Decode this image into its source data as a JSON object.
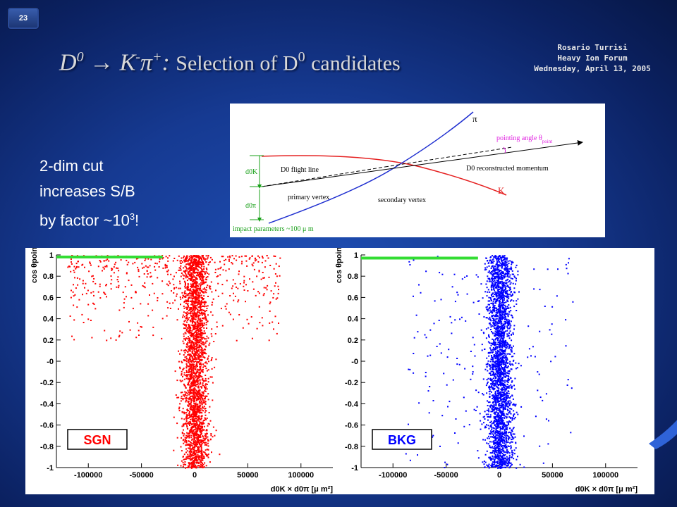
{
  "slide_number": "23",
  "header": {
    "author": "Rosario Turrisi",
    "event": "Heavy Ion Forum",
    "date": "Wednesday, April 13, 2005"
  },
  "title": {
    "d": "D",
    "d_sup": "0",
    "arrow": "→",
    "k": "K",
    "k_sup": "-",
    "pi": "π",
    "pi_sup": "+",
    "colon": ":",
    "rest": "Selection of D",
    "rest_sup": "0",
    "rest_end": "candidates"
  },
  "bullet": {
    "line1": "2-dim cut",
    "line2": "increases S/B",
    "line3_pre": "by factor ~10",
    "line3_sup": "3",
    "line3_post": "!"
  },
  "diagram": {
    "pi_label": "π",
    "k_label": "K",
    "pointing_angle": "pointing angle θ",
    "pointing_sub": "point",
    "flight_line": "D0 flight line",
    "reco_momentum": "D0 reconstructed momentum",
    "primary_vertex": "primary vertex",
    "secondary_vertex": "secondary vertex",
    "d0k": "d0K",
    "d0pi": "d0π",
    "impact": "impact parameters ~100 μ m",
    "colors": {
      "kaon": "#e52020",
      "pion": "#1f2fd0",
      "pointing": "#e020e0",
      "impact": "#19a019"
    }
  },
  "chart_data": [
    {
      "type": "scatter",
      "legend": "SGN",
      "color": "#ff0000",
      "ylabel": "cos θpoint",
      "xlabel": "d0K × d0π [μ m²]",
      "xlim": [
        -130000,
        130000
      ],
      "ylim": [
        -1,
        1
      ],
      "xticks": [
        "-100000",
        "-50000",
        "0",
        "50000",
        "100000"
      ],
      "yticks": [
        "1",
        "0.8",
        "0.6",
        "0.4",
        "0.2",
        "-0",
        "-0.2",
        "-0.4",
        "-0.6",
        "-0.8",
        "-1"
      ],
      "cut_line": {
        "x": [
          -130000,
          -30000
        ],
        "y": 0.98
      },
      "distribution": {
        "core_x_halfwidth": 10000,
        "wing_x_min": -120000,
        "wing_x_max": 80000
      }
    },
    {
      "type": "scatter",
      "legend": "BKG",
      "color": "#0000ff",
      "ylabel": "cos θpoint",
      "xlabel": "d0K × d0π [μ m²]",
      "xlim": [
        -130000,
        130000
      ],
      "ylim": [
        -1,
        1
      ],
      "xticks": [
        "-100000",
        "-50000",
        "0",
        "50000",
        "100000"
      ],
      "yticks": [
        "1",
        "0.8",
        "0.6",
        "0.4",
        "0.2",
        "-0",
        "-0.2",
        "-0.4",
        "-0.6",
        "-0.8",
        "-1"
      ],
      "cut_line": {
        "x": [
          -130000,
          -20000
        ],
        "y": 0.97
      },
      "distribution": {
        "core_x_halfwidth": 10000,
        "wing_x_min": -90000,
        "wing_x_max": 70000
      }
    }
  ]
}
